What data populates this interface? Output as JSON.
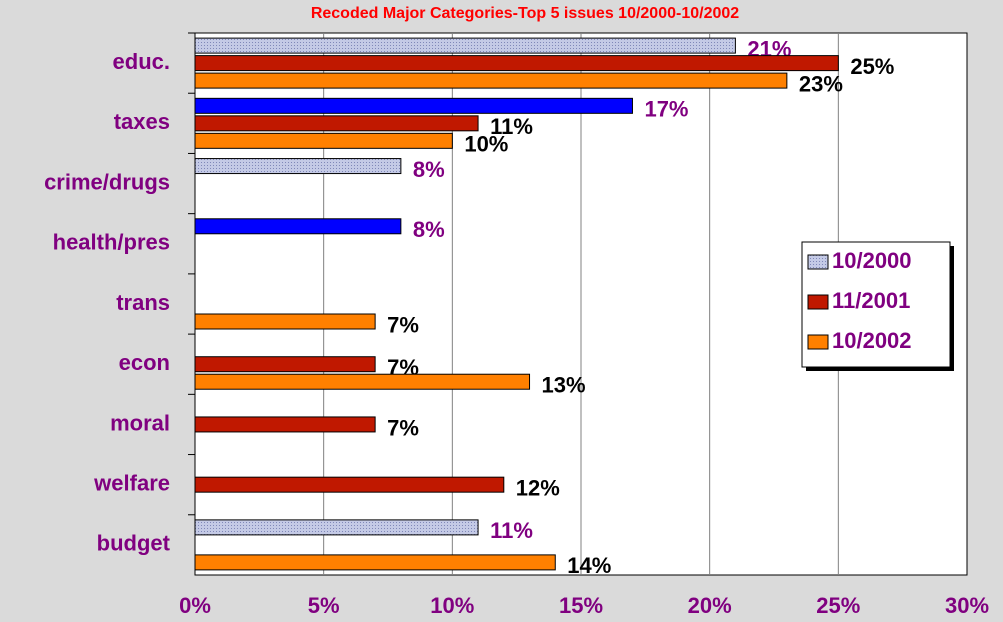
{
  "chart_data": {
    "type": "hbar",
    "title": "Recoded Major Categories-Top 5 issues 10/2000-10/2002",
    "categories": [
      "educ.",
      "taxes",
      "crime/drugs",
      "health/pres",
      "trans",
      "econ",
      "moral",
      "welfare",
      "budget"
    ],
    "series": [
      {
        "name": "10/2000",
        "color": "#c4cae6",
        "colors": [
          "#c4cae6",
          "#0000ff",
          "#c4cae6",
          "#0000ff",
          null,
          null,
          null,
          null,
          "#c4cae6"
        ],
        "label_color": "#800080",
        "values": [
          21,
          17,
          8,
          8,
          null,
          null,
          null,
          null,
          11
        ],
        "value_labels": [
          "21%",
          "17%",
          "8%",
          "8%",
          null,
          null,
          null,
          null,
          "11%"
        ]
      },
      {
        "name": "11/2001",
        "color": "#c01800",
        "label_color": "#000000",
        "values": [
          25,
          11,
          null,
          null,
          null,
          7,
          7,
          12,
          null
        ],
        "value_labels": [
          "25%",
          "11%",
          null,
          null,
          null,
          "7%",
          "7%",
          "12%",
          null
        ]
      },
      {
        "name": "10/2002",
        "color": "#ff8000",
        "label_color": "#000000",
        "values": [
          23,
          10,
          null,
          null,
          7,
          13,
          null,
          null,
          14
        ],
        "value_labels": [
          "23%",
          "10%",
          null,
          null,
          "7%",
          "13%",
          null,
          null,
          "14%"
        ]
      }
    ],
    "xlim": [
      0,
      30
    ],
    "xticks": [
      {
        "value": 0,
        "label": "0%"
      },
      {
        "value": 5,
        "label": "5%"
      },
      {
        "value": 10,
        "label": "10%"
      },
      {
        "value": 15,
        "label": "15%"
      },
      {
        "value": 20,
        "label": "20%"
      },
      {
        "value": 25,
        "label": "25%"
      },
      {
        "value": 30,
        "label": "30%"
      }
    ],
    "grid": true,
    "legend": "right"
  }
}
